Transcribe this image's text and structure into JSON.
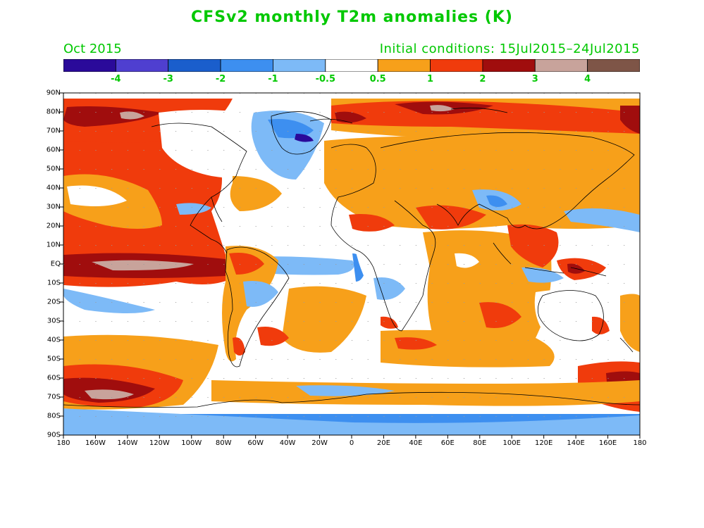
{
  "title": "CFSv2 monthly T2m anomalies (K)",
  "valid_month": "Oct 2015",
  "initial_conditions": "Initial conditions: 15Jul2015–24Jul2015",
  "colorbar": {
    "colors": [
      "#2a0a9a",
      "#4f3fd0",
      "#1a5ecc",
      "#3d8ff0",
      "#7dbaf7",
      "#ffffff",
      "#f7a01a",
      "#f03b0c",
      "#a00d0d",
      "#c8a39b",
      "#7e5547"
    ],
    "labels": [
      "-4",
      "-3",
      "-2",
      "-1",
      "-0.5",
      "0.5",
      "1",
      "2",
      "3",
      "4"
    ]
  },
  "axes": {
    "lat_labels": [
      "90N",
      "80N",
      "70N",
      "60N",
      "50N",
      "40N",
      "30N",
      "20N",
      "10N",
      "EQ",
      "10S",
      "20S",
      "30S",
      "40S",
      "50S",
      "60S",
      "70S",
      "80S",
      "90S"
    ],
    "lon_labels": [
      "180",
      "160W",
      "140W",
      "120W",
      "100W",
      "80W",
      "60W",
      "40W",
      "20W",
      "0",
      "20E",
      "40E",
      "60E",
      "80E",
      "100E",
      "120E",
      "140E",
      "160E",
      "180"
    ]
  },
  "colors": {
    "title_green": "#00c800"
  }
}
